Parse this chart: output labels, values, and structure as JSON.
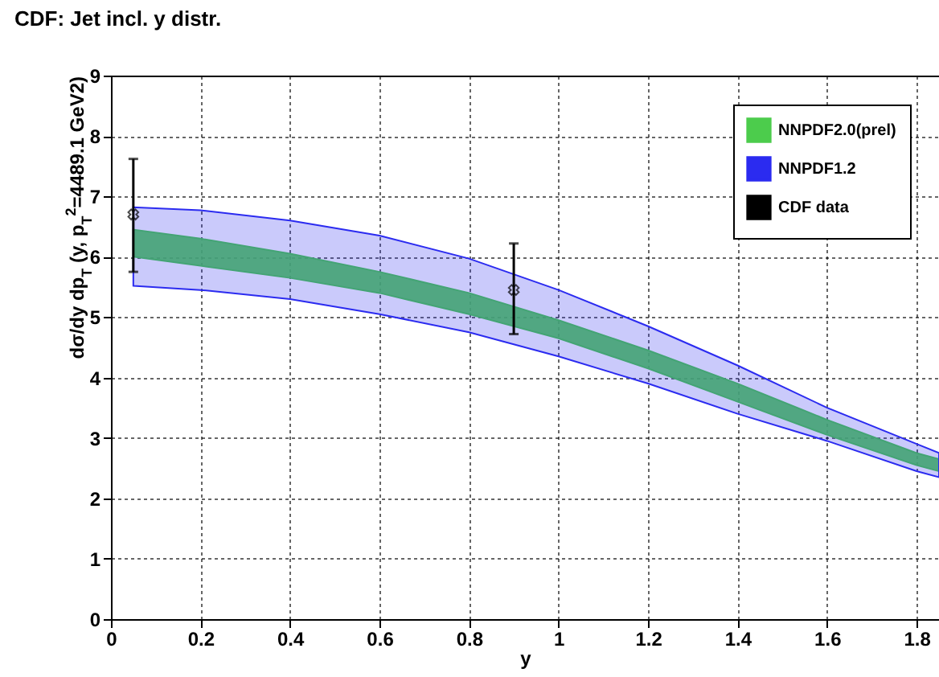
{
  "chart_data": {
    "type": "area",
    "title": "CDF: Jet incl. y distr.",
    "xlabel": "y",
    "ylabel": "dσ/dy dp$_{T}$ (y, p$_{T}$$^{2}$=4489.1 GeV2)",
    "xlim": [
      0,
      1.85
    ],
    "ylim": [
      0,
      9
    ],
    "xticks": [
      0,
      0.2,
      0.4,
      0.6,
      0.8,
      1,
      1.2,
      1.4,
      1.6,
      1.8
    ],
    "yticks": [
      0,
      1,
      2,
      3,
      4,
      5,
      6,
      7,
      8,
      9
    ],
    "grid": true,
    "legend": "top right",
    "series": [
      {
        "name": "NNPDF2.0(prel)",
        "color": "#4ccc4c",
        "x": [
          0.05,
          0.2,
          0.4,
          0.6,
          0.8,
          1.0,
          1.2,
          1.4,
          1.6,
          1.8,
          1.85
        ],
        "values": [
          null,
          null,
          null,
          null,
          null,
          null,
          null,
          null,
          null,
          null,
          null
        ],
        "lower": [
          6.0,
          5.85,
          5.65,
          5.4,
          5.05,
          4.65,
          4.15,
          3.6,
          3.05,
          2.55,
          2.45
        ],
        "upper": [
          6.45,
          6.3,
          6.05,
          5.75,
          5.4,
          4.95,
          4.45,
          3.9,
          3.3,
          2.75,
          2.65
        ]
      },
      {
        "name": "NNPDF1.2",
        "color": "#2b2bf0",
        "x": [
          0.05,
          0.2,
          0.4,
          0.6,
          0.8,
          1.0,
          1.2,
          1.4,
          1.6,
          1.8,
          1.85
        ],
        "values": [
          null,
          null,
          null,
          null,
          null,
          null,
          null,
          null,
          null,
          null,
          null
        ],
        "lower": [
          5.52,
          5.45,
          5.3,
          5.05,
          4.75,
          4.35,
          3.9,
          3.4,
          2.95,
          2.45,
          2.35
        ],
        "upper": [
          6.82,
          6.77,
          6.6,
          6.35,
          5.97,
          5.45,
          4.85,
          4.2,
          3.5,
          2.9,
          2.75
        ]
      },
      {
        "name": "CDF data",
        "type": "scatter",
        "color": "#000000",
        "marker": "cross",
        "x": [
          0.05,
          0.9
        ],
        "values": [
          6.7,
          5.45
        ],
        "errors": [
          [
            5.75,
            7.62
          ],
          [
            4.72,
            6.22
          ]
        ]
      }
    ]
  }
}
